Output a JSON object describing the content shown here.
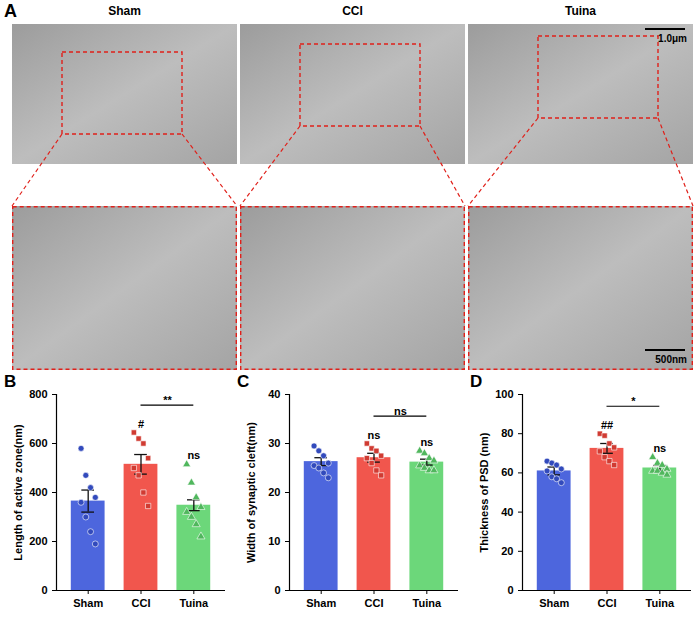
{
  "panel_a": {
    "letter": "A",
    "columns": [
      "Sham",
      "CCI",
      "Tuina"
    ],
    "scale_bars": [
      "1.0μm",
      "500nm"
    ]
  },
  "chart_data": [
    {
      "type": "bar",
      "panel": "B",
      "y_label": "Length of active zone(nm)",
      "categories": [
        "Sham",
        "CCI",
        "Tuina"
      ],
      "values": [
        365,
        515,
        348
      ],
      "error": [
        45,
        40,
        22
      ],
      "colors": [
        "#3a55d9",
        "#f0443a",
        "#5cd36b"
      ],
      "points": [
        {
          "category": "Sham",
          "marker": "circle",
          "values": [
            580,
            470,
            420,
            380,
            360,
            300,
            240,
            190
          ]
        },
        {
          "category": "CCI",
          "marker": "square",
          "values": [
            645,
            620,
            600,
            540,
            500,
            470,
            400,
            345
          ]
        },
        {
          "category": "Tuina",
          "marker": "triangle",
          "values": [
            515,
            440,
            380,
            340,
            320,
            300,
            270,
            220
          ]
        }
      ],
      "annotations": [
        {
          "category": "CCI",
          "text": "#"
        },
        {
          "category": "Tuina",
          "text": "ns"
        }
      ],
      "bracket": {
        "from": "CCI",
        "to": "Tuina",
        "text": "**"
      },
      "ylim": [
        0,
        800
      ],
      "yticks": [
        0,
        200,
        400,
        600,
        800
      ]
    },
    {
      "type": "bar",
      "panel": "C",
      "y_label": "Width of synaptic cleft(nm)",
      "categories": [
        "Sham",
        "CCI",
        "Tuina"
      ],
      "values": [
        26.3,
        27.1,
        26.2
      ],
      "error": [
        0.8,
        0.9,
        0.6
      ],
      "colors": [
        "#3a55d9",
        "#f0443a",
        "#5cd36b"
      ],
      "points": [
        {
          "category": "Sham",
          "marker": "circle",
          "values": [
            29.5,
            28.5,
            27.5,
            26,
            25.5,
            25,
            24,
            23
          ]
        },
        {
          "category": "CCI",
          "marker": "square",
          "values": [
            30,
            29,
            28.5,
            27.5,
            27,
            26,
            24.5,
            23.5
          ]
        },
        {
          "category": "Tuina",
          "marker": "triangle",
          "values": [
            28.5,
            28,
            27,
            26.5,
            25.5,
            25,
            24.5,
            24.5
          ]
        }
      ],
      "annotations": [
        {
          "category": "CCI",
          "text": "ns"
        },
        {
          "category": "Tuina",
          "text": "ns"
        }
      ],
      "bracket": {
        "from": "CCI",
        "to": "Tuina",
        "text": "ns"
      },
      "ylim": [
        0,
        40
      ],
      "yticks": [
        0,
        10,
        20,
        30,
        40
      ]
    },
    {
      "type": "bar",
      "panel": "D",
      "y_label": "Thickness of PSD (nm)",
      "categories": [
        "Sham",
        "CCI",
        "Tuina"
      ],
      "values": [
        61,
        72.5,
        62.5
      ],
      "error": [
        2,
        2.5,
        1.3
      ],
      "colors": [
        "#3a55d9",
        "#f0443a",
        "#5cd36b"
      ],
      "points": [
        {
          "category": "Sham",
          "marker": "circle",
          "values": [
            66,
            65,
            64,
            62,
            61,
            58,
            57,
            55
          ]
        },
        {
          "category": "CCI",
          "marker": "square",
          "values": [
            80,
            79,
            75,
            73,
            71,
            68,
            66,
            64
          ]
        },
        {
          "category": "Tuina",
          "marker": "triangle",
          "values": [
            68,
            65,
            64,
            62,
            61,
            61,
            60,
            59
          ]
        }
      ],
      "annotations": [
        {
          "category": "CCI",
          "text": "##"
        },
        {
          "category": "Tuina",
          "text": "ns"
        }
      ],
      "bracket": {
        "from": "CCI",
        "to": "Tuina",
        "text": "*"
      },
      "ylim": [
        0,
        100
      ],
      "yticks": [
        0,
        20,
        40,
        60,
        80,
        100
      ]
    }
  ]
}
